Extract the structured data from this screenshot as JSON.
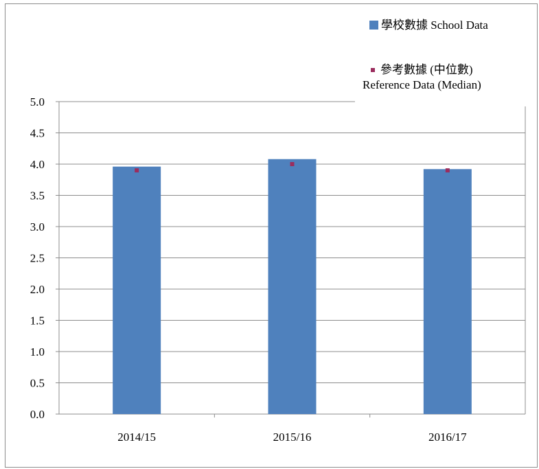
{
  "chart_data": {
    "type": "bar",
    "categories": [
      "2014/15",
      "2015/16",
      "2016/17"
    ],
    "series": [
      {
        "name": "學校數據 School Data",
        "kind": "bar",
        "color": "#4f81bd",
        "values": [
          3.96,
          4.08,
          3.92
        ]
      },
      {
        "name": "參考數據 (中位數) Reference Data (Median)",
        "kind": "marker",
        "color": "#9b2d5e",
        "values": [
          3.9,
          4.0,
          3.9
        ]
      }
    ],
    "yticks": [
      "0.0",
      "0.5",
      "1.0",
      "1.5",
      "2.0",
      "2.5",
      "3.0",
      "3.5",
      "4.0",
      "4.5",
      "5.0"
    ],
    "ylim": [
      0,
      5
    ],
    "grid": true,
    "legend_position": "top-right"
  },
  "legend": {
    "school_label": "學校數據 School Data",
    "ref_label_line1": "參考數據 (中位數)",
    "ref_label_line2": "Reference Data (Median)"
  }
}
